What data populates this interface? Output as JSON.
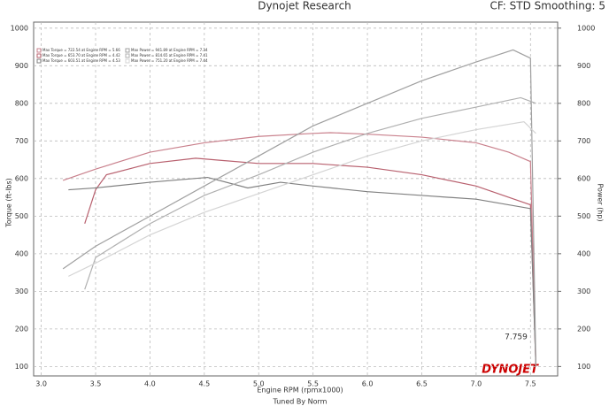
{
  "chart_data": {
    "type": "line",
    "title": "Dynojet Research",
    "subtitle": "CF: STD Smoothing: 5",
    "x_label": "Engine RPM (rpmx1000)",
    "y_label": "Torque (ft-lbs)",
    "y2_label": "Power (hp)",
    "footer": "Tuned By Norm",
    "logo": "DYNOJET",
    "annotations": [
      "7.759"
    ],
    "xlim": [
      2.93,
      7.75
    ],
    "xticks": [
      {
        "value": 3,
        "label": "3.0"
      },
      {
        "value": 3.5,
        "label": "3.5"
      },
      {
        "value": 4,
        "label": "4.0"
      },
      {
        "value": 4.5,
        "label": "4.5"
      },
      {
        "value": 5,
        "label": "5.0"
      },
      {
        "value": 5.5,
        "label": "5.5"
      },
      {
        "value": 6,
        "label": "6.0"
      },
      {
        "value": 6.5,
        "label": "6.5"
      },
      {
        "value": 7,
        "label": "7.0"
      },
      {
        "value": 7.5,
        "label": "7.5"
      }
    ],
    "ylim": [
      75,
      1016
    ],
    "yticks": [
      100,
      200,
      300,
      400,
      500,
      600,
      700,
      800,
      900,
      1000
    ],
    "y2lim": [
      75,
      1016
    ],
    "y2ticks": [
      100,
      200,
      300,
      400,
      500,
      600,
      700,
      800,
      900,
      1000
    ],
    "grid": true,
    "series": [
      {
        "name": "Max Torque = 722.54 at Engine RPM = 5.66",
        "color": "#c9808c",
        "x": [
          3.2,
          3.5,
          4.0,
          4.5,
          5.0,
          5.5,
          5.66,
          6.0,
          6.5,
          7.0,
          7.3,
          7.5,
          7.55
        ],
        "values": [
          595,
          625,
          670,
          695,
          712,
          720,
          722,
          718,
          710,
          695,
          670,
          645,
          100
        ]
      },
      {
        "name": "Max Torque = 653.70 at Engine RPM = 4.42",
        "color": "#b8606e",
        "x": [
          3.4,
          3.5,
          3.6,
          4.0,
          4.42,
          5.0,
          5.5,
          6.0,
          6.5,
          7.0,
          7.5,
          7.55
        ],
        "values": [
          480,
          570,
          610,
          640,
          654,
          640,
          640,
          630,
          610,
          580,
          530,
          100
        ]
      },
      {
        "name": "Max Torque = 603.51 at Engine RPM = 4.53",
        "color": "#808080",
        "x": [
          3.25,
          3.5,
          4.0,
          4.53,
          4.9,
          5.2,
          5.5,
          6.0,
          6.5,
          7.0,
          7.5,
          7.55
        ],
        "values": [
          570,
          575,
          590,
          603,
          575,
          590,
          580,
          565,
          555,
          545,
          520,
          100
        ]
      },
      {
        "name": "Max Power = 941.89 at Engine RPM = 7.34",
        "color": "#a0a0a0",
        "axis": "y2",
        "x": [
          3.2,
          3.5,
          4.0,
          4.5,
          5.0,
          5.5,
          6.0,
          6.5,
          7.0,
          7.34,
          7.5,
          7.55
        ],
        "values": [
          360,
          420,
          500,
          580,
          660,
          740,
          800,
          860,
          910,
          942,
          920,
          100
        ]
      },
      {
        "name": "Max Power = 814.65 at Engine RPM = 7.41",
        "color": "#b0b0b0",
        "axis": "y2",
        "x": [
          3.4,
          3.5,
          4.0,
          4.5,
          5.0,
          5.5,
          6.0,
          6.5,
          7.0,
          7.41,
          7.55
        ],
        "values": [
          305,
          390,
          480,
          555,
          610,
          670,
          720,
          760,
          790,
          815,
          800
        ]
      },
      {
        "name": "Max Power = 751.20 at Engine RPM = 7.44",
        "color": "#d4d4d4",
        "axis": "y2",
        "x": [
          3.25,
          3.5,
          4.0,
          4.5,
          5.0,
          5.5,
          6.0,
          6.5,
          7.0,
          7.44,
          7.55
        ],
        "values": [
          340,
          375,
          450,
          510,
          560,
          610,
          660,
          700,
          730,
          751,
          720
        ]
      }
    ]
  }
}
